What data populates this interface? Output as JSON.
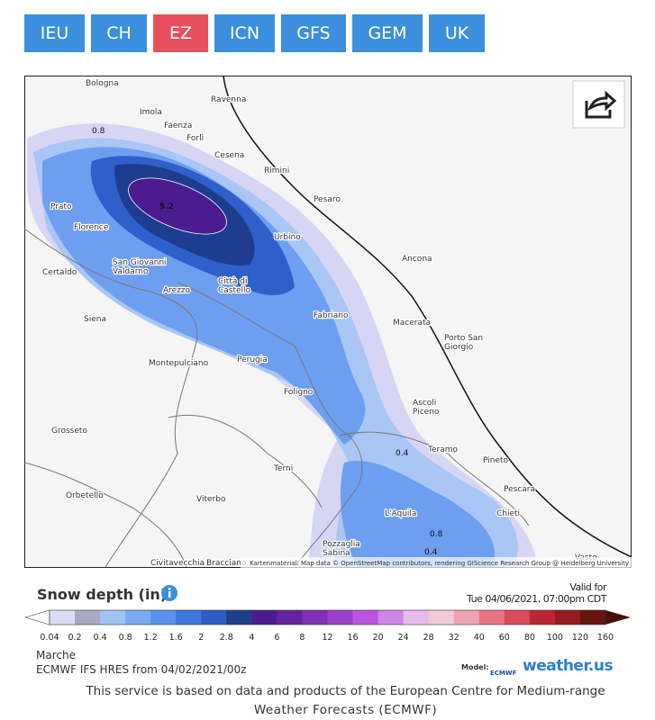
{
  "tabs": [
    "IEU",
    "CH",
    "EZ",
    "ICN",
    "GFS",
    "GEM",
    "UK"
  ],
  "active_tab": 2,
  "map": {
    "cities": [
      {
        "lines": [
          "Bologna"
        ]
      },
      {
        "lines": [
          "Ravenna"
        ]
      },
      {
        "lines": [
          "Imola"
        ]
      },
      {
        "lines": [
          "Faenza"
        ]
      },
      {
        "lines": [
          "Forlì"
        ]
      },
      {
        "lines": [
          "Cesena"
        ]
      },
      {
        "lines": [
          "Rimini"
        ]
      },
      {
        "lines": [
          "Pesaro"
        ]
      },
      {
        "lines": [
          "Prato"
        ]
      },
      {
        "lines": [
          "Florence"
        ]
      },
      {
        "lines": [
          "Urbino"
        ]
      },
      {
        "lines": [
          "Ancona"
        ]
      },
      {
        "lines": [
          "San Giovanni",
          "Valdarno"
        ]
      },
      {
        "lines": [
          "Certaldo"
        ]
      },
      {
        "lines": [
          "Città di",
          "Castello"
        ]
      },
      {
        "lines": [
          "Arezzo"
        ]
      },
      {
        "lines": [
          "Fabriano"
        ]
      },
      {
        "lines": [
          "Macerata"
        ]
      },
      {
        "lines": [
          "Siena"
        ]
      },
      {
        "lines": [
          "Porto San",
          "Giorgio"
        ]
      },
      {
        "lines": [
          "Montepulciano"
        ]
      },
      {
        "lines": [
          "Perugia"
        ]
      },
      {
        "lines": [
          "Foligno"
        ]
      },
      {
        "lines": [
          "Ascoli",
          "Piceno"
        ]
      },
      {
        "lines": [
          "Grosseto"
        ]
      },
      {
        "lines": [
          "Teramo"
        ]
      },
      {
        "lines": [
          "Pineto"
        ]
      },
      {
        "lines": [
          "Terni"
        ]
      },
      {
        "lines": [
          "Pescara"
        ]
      },
      {
        "lines": [
          "Orbetello"
        ]
      },
      {
        "lines": [
          "Viterbo"
        ]
      },
      {
        "lines": [
          "L'Aquila"
        ]
      },
      {
        "lines": [
          "Chieti"
        ]
      },
      {
        "lines": [
          "Pozzaglia",
          "Sabina"
        ]
      },
      {
        "lines": [
          "Civitavecchia"
        ]
      },
      {
        "lines": [
          "Bracciano"
        ]
      },
      {
        "lines": [
          "Vasto"
        ]
      }
    ],
    "contour_labels": [
      "0.8",
      "5.2",
      "0.4",
      "0.8",
      "0.4"
    ],
    "attribution": "Kartenmaterial: Map data © OpenStreetMap contributors, rendering GIScience Research Group @ Heidelberg University"
  },
  "legend": {
    "title": "Snow depth (in)",
    "valid_for": "Valid for",
    "valid_time": "Tue 04/06/2021, 07:00pm CDT",
    "ticks": [
      0.04,
      0.2,
      0.4,
      0.8,
      1.2,
      1.6,
      2,
      2.8,
      4,
      6,
      8,
      12,
      16,
      20,
      24,
      28,
      32,
      40,
      60,
      80,
      100,
      120,
      160
    ],
    "colors": [
      "#ffffff",
      "#dcdcf6",
      "#a9a9c4",
      "#9ec3f5",
      "#7aabf2",
      "#5a92ec",
      "#3f76e0",
      "#2c5dc4",
      "#1f3f8c",
      "#4b1c8f",
      "#65239e",
      "#8030b4",
      "#9c40cc",
      "#b955e0",
      "#cf86e6",
      "#e6bde8",
      "#f2c9d6",
      "#f0a3b0",
      "#e87482",
      "#da4a5a",
      "#bc2634",
      "#961b1e",
      "#6a1410",
      "#4a0e0a"
    ]
  },
  "region": "Marche",
  "model_run": "ECMWF IFS HRES from 04/02/2021/00z",
  "model_label": "Model:",
  "ecmwf": "ECMWF",
  "brand": "weather.us",
  "footer": [
    "This service is based on data and products of the European Centre for Medium-range",
    "Weather Forecasts (ECMWF)"
  ]
}
